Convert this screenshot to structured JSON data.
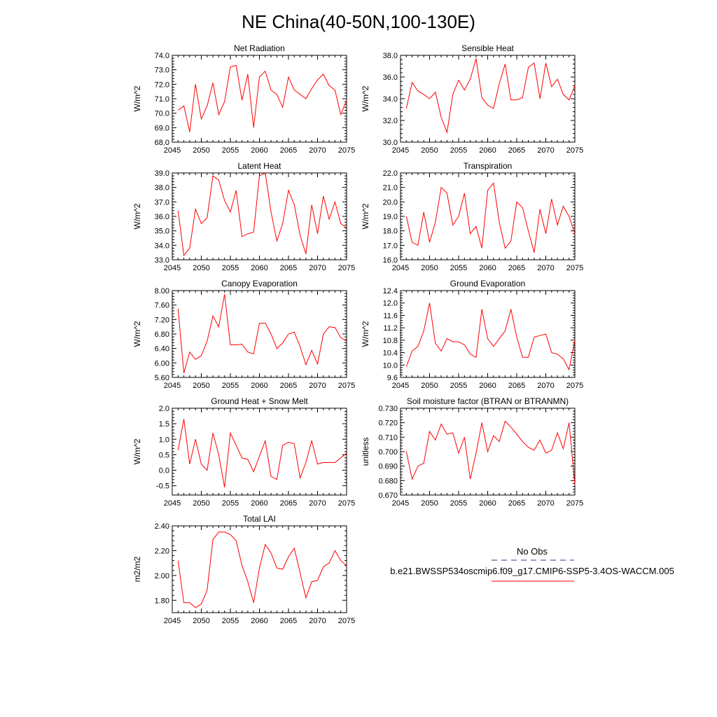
{
  "title": "NE China(40-50N,100-130E)",
  "x_tick_labels": [
    "2045",
    "2050",
    "2055",
    "2060",
    "2065",
    "2070",
    "2075"
  ],
  "legend": {
    "obs_label": "No Obs",
    "case_label": "b.e21.BWSSP534oscmip6.f09_g17.CMIP6-SSP5-3.4OS-WACCM.005",
    "obs_color": "#5a5aa0",
    "case_color": "#ff0000"
  },
  "chart_data": [
    {
      "type": "line",
      "title": "Net Radiation",
      "ylabel": "W/m^2",
      "xlim": [
        2045,
        2075
      ],
      "ylim": [
        68.0,
        74.0
      ],
      "yticks": [
        "68.0",
        "69.0",
        "70.0",
        "71.0",
        "72.0",
        "73.0",
        "74.0"
      ],
      "x": [
        2046,
        2047,
        2048,
        2049,
        2050,
        2051,
        2052,
        2053,
        2054,
        2055,
        2056,
        2057,
        2058,
        2059,
        2060,
        2061,
        2062,
        2063,
        2064,
        2065,
        2066,
        2067,
        2068,
        2069,
        2070,
        2071,
        2072,
        2073,
        2074,
        2075
      ],
      "series": [
        {
          "values": [
            70.2,
            70.5,
            68.7,
            72.0,
            69.6,
            70.5,
            72.1,
            69.9,
            70.8,
            73.2,
            73.3,
            70.9,
            72.7,
            69.0,
            72.5,
            72.9,
            71.6,
            71.3,
            70.4,
            72.5,
            71.6,
            71.3,
            71.0,
            71.7,
            72.3,
            72.7,
            71.9,
            71.6,
            69.9,
            70.9
          ]
        }
      ]
    },
    {
      "type": "line",
      "title": "Sensible Heat",
      "ylabel": "W/m^2",
      "xlim": [
        2045,
        2075
      ],
      "ylim": [
        30.0,
        38.0
      ],
      "yticks": [
        "30.0",
        "32.0",
        "34.0",
        "36.0",
        "38.0"
      ],
      "x": [
        2046,
        2047,
        2048,
        2049,
        2050,
        2051,
        2052,
        2053,
        2054,
        2055,
        2056,
        2057,
        2058,
        2059,
        2060,
        2061,
        2062,
        2063,
        2064,
        2065,
        2066,
        2067,
        2068,
        2069,
        2070,
        2071,
        2072,
        2073,
        2074,
        2075
      ],
      "series": [
        {
          "values": [
            33.1,
            35.5,
            34.7,
            34.4,
            34.0,
            34.6,
            32.3,
            30.9,
            34.4,
            35.7,
            34.8,
            35.8,
            37.7,
            34.1,
            33.4,
            33.1,
            35.4,
            37.2,
            33.9,
            33.9,
            34.1,
            36.9,
            37.3,
            34.0,
            37.3,
            35.1,
            35.8,
            34.4,
            33.9,
            35.2
          ]
        }
      ]
    },
    {
      "type": "line",
      "title": "Latent Heat",
      "ylabel": "W/m^2",
      "xlim": [
        2045,
        2075
      ],
      "ylim": [
        33.0,
        39.0
      ],
      "yticks": [
        "33.0",
        "34.0",
        "35.0",
        "36.0",
        "37.0",
        "38.0",
        "39.0"
      ],
      "x": [
        2046,
        2047,
        2048,
        2049,
        2050,
        2051,
        2052,
        2053,
        2054,
        2055,
        2056,
        2057,
        2058,
        2059,
        2060,
        2061,
        2062,
        2063,
        2064,
        2065,
        2066,
        2067,
        2068,
        2069,
        2070,
        2071,
        2072,
        2073,
        2074,
        2075
      ],
      "series": [
        {
          "values": [
            36.4,
            33.3,
            33.8,
            36.5,
            35.5,
            35.9,
            38.8,
            38.5,
            37.1,
            36.3,
            37.8,
            34.6,
            34.8,
            34.9,
            38.8,
            39.0,
            36.3,
            34.3,
            35.5,
            37.8,
            36.8,
            34.7,
            33.4,
            36.8,
            34.8,
            37.4,
            35.8,
            37.0,
            35.5,
            35.2
          ]
        }
      ]
    },
    {
      "type": "line",
      "title": "Transpiration",
      "ylabel": "W/m^2",
      "xlim": [
        2045,
        2075
      ],
      "ylim": [
        16.0,
        22.0
      ],
      "yticks": [
        "16.0",
        "17.0",
        "18.0",
        "19.0",
        "20.0",
        "21.0",
        "22.0"
      ],
      "x": [
        2046,
        2047,
        2048,
        2049,
        2050,
        2051,
        2052,
        2053,
        2054,
        2055,
        2056,
        2057,
        2058,
        2059,
        2060,
        2061,
        2062,
        2063,
        2064,
        2065,
        2066,
        2067,
        2068,
        2069,
        2070,
        2071,
        2072,
        2073,
        2074,
        2075
      ],
      "series": [
        {
          "values": [
            19.0,
            17.2,
            17.0,
            19.3,
            17.2,
            18.6,
            21.0,
            20.6,
            18.4,
            19.0,
            20.6,
            17.8,
            18.3,
            16.8,
            20.8,
            21.3,
            18.6,
            16.8,
            17.3,
            20.0,
            19.6,
            18.0,
            16.5,
            19.5,
            17.8,
            20.2,
            18.4,
            19.7,
            19.0,
            17.8
          ]
        }
      ]
    },
    {
      "type": "line",
      "title": "Canopy Evaporation",
      "ylabel": "W/m^2",
      "xlim": [
        2045,
        2075
      ],
      "ylim": [
        5.6,
        8.0
      ],
      "yticks": [
        "5.60",
        "6.00",
        "6.40",
        "6.80",
        "7.20",
        "7.60",
        "8.00"
      ],
      "x": [
        2046,
        2047,
        2048,
        2049,
        2050,
        2051,
        2052,
        2053,
        2054,
        2055,
        2056,
        2057,
        2058,
        2059,
        2060,
        2061,
        2062,
        2063,
        2064,
        2065,
        2066,
        2067,
        2068,
        2069,
        2070,
        2071,
        2072,
        2073,
        2074,
        2075
      ],
      "series": [
        {
          "values": [
            7.5,
            5.72,
            6.3,
            6.1,
            6.2,
            6.6,
            7.3,
            7.0,
            7.9,
            6.5,
            6.5,
            6.52,
            6.3,
            6.25,
            7.1,
            7.1,
            6.8,
            6.4,
            6.55,
            6.8,
            6.85,
            6.45,
            5.95,
            6.35,
            5.97,
            6.8,
            7.0,
            6.98,
            6.7,
            6.6
          ]
        }
      ]
    },
    {
      "type": "line",
      "title": "Ground Evaporation",
      "ylabel": "W/m^2",
      "xlim": [
        2045,
        2075
      ],
      "ylim": [
        9.6,
        12.4
      ],
      "yticks": [
        "9.6",
        "10.0",
        "10.4",
        "10.8",
        "11.2",
        "11.6",
        "12.0",
        "12.4"
      ],
      "x": [
        2046,
        2047,
        2048,
        2049,
        2050,
        2051,
        2052,
        2053,
        2054,
        2055,
        2056,
        2057,
        2058,
        2059,
        2060,
        2061,
        2062,
        2063,
        2064,
        2065,
        2066,
        2067,
        2068,
        2069,
        2070,
        2071,
        2072,
        2073,
        2074,
        2075
      ],
      "series": [
        {
          "values": [
            9.95,
            10.45,
            10.6,
            11.1,
            12.0,
            10.7,
            10.45,
            10.85,
            10.75,
            10.75,
            10.65,
            10.35,
            10.25,
            11.8,
            10.85,
            10.6,
            10.85,
            11.1,
            11.8,
            10.9,
            10.25,
            10.25,
            10.9,
            10.95,
            11.0,
            10.4,
            10.35,
            10.2,
            9.85,
            10.8
          ]
        }
      ]
    },
    {
      "type": "line",
      "title": "Ground Heat + Snow Melt",
      "ylabel": "W/m^2",
      "xlim": [
        2045,
        2075
      ],
      "ylim": [
        -0.8,
        2.0
      ],
      "yticks": [
        "-0.5",
        "0.0",
        "0.5",
        "1.0",
        "1.5",
        "2.0"
      ],
      "x": [
        2046,
        2047,
        2048,
        2049,
        2050,
        2051,
        2052,
        2053,
        2054,
        2055,
        2056,
        2057,
        2058,
        2059,
        2060,
        2061,
        2062,
        2063,
        2064,
        2065,
        2066,
        2067,
        2068,
        2069,
        2070,
        2071,
        2072,
        2073,
        2074,
        2075
      ],
      "series": [
        {
          "values": [
            0.65,
            1.65,
            0.2,
            1.0,
            0.2,
            0.0,
            1.2,
            0.5,
            -0.55,
            1.2,
            0.8,
            0.4,
            0.35,
            -0.05,
            0.45,
            0.95,
            -0.2,
            -0.3,
            0.8,
            0.9,
            0.85,
            -0.25,
            0.25,
            0.95,
            0.2,
            0.25,
            0.25,
            0.25,
            0.4,
            0.55
          ]
        }
      ]
    },
    {
      "type": "line",
      "title": "Soil moisture factor (BTRAN or BTRANMN)",
      "ylabel": "unitless",
      "xlim": [
        2045,
        2075
      ],
      "ylim": [
        0.67,
        0.73
      ],
      "yticks": [
        "0.670",
        "0.680",
        "0.690",
        "0.700",
        "0.710",
        "0.720",
        "0.730"
      ],
      "x": [
        2046,
        2047,
        2048,
        2049,
        2050,
        2051,
        2052,
        2053,
        2054,
        2055,
        2056,
        2057,
        2058,
        2059,
        2060,
        2061,
        2062,
        2063,
        2064,
        2065,
        2066,
        2067,
        2068,
        2069,
        2070,
        2071,
        2072,
        2073,
        2074,
        2075
      ],
      "series": [
        {
          "values": [
            0.7,
            0.681,
            0.69,
            0.692,
            0.714,
            0.708,
            0.719,
            0.712,
            0.713,
            0.699,
            0.71,
            0.681,
            0.699,
            0.72,
            0.7,
            0.711,
            0.707,
            0.721,
            0.717,
            0.712,
            0.707,
            0.703,
            0.701,
            0.708,
            0.699,
            0.701,
            0.713,
            0.702,
            0.72,
            0.677
          ]
        }
      ]
    },
    {
      "type": "line",
      "title": "Total LAI",
      "ylabel": "m2/m2",
      "xlim": [
        2045,
        2075
      ],
      "ylim": [
        1.7,
        2.4
      ],
      "yticks": [
        "1.80",
        "2.00",
        "2.20",
        "2.40"
      ],
      "x": [
        2046,
        2047,
        2048,
        2049,
        2050,
        2051,
        2052,
        2053,
        2054,
        2055,
        2056,
        2057,
        2058,
        2059,
        2060,
        2061,
        2062,
        2063,
        2064,
        2065,
        2066,
        2067,
        2068,
        2069,
        2070,
        2071,
        2072,
        2073,
        2074,
        2075
      ],
      "series": [
        {
          "values": [
            2.12,
            1.78,
            1.78,
            1.74,
            1.77,
            1.88,
            2.29,
            2.35,
            2.35,
            2.33,
            2.28,
            2.08,
            1.95,
            1.78,
            2.06,
            2.25,
            2.18,
            2.06,
            2.05,
            2.15,
            2.22,
            2.02,
            1.82,
            1.95,
            1.96,
            2.07,
            2.1,
            2.2,
            2.12,
            2.08
          ]
        }
      ]
    }
  ]
}
